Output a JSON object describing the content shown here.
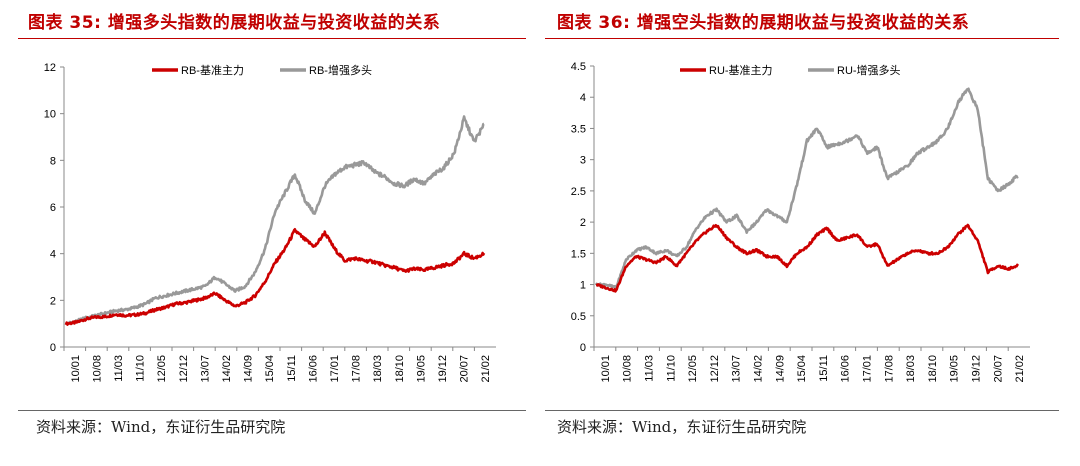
{
  "charts": [
    {
      "title": "图表 35: 增强多头指数的展期收益与投资收益的关系",
      "source": "资料来源：Wind，东证衍生品研究院"
    },
    {
      "title": "图表 36: 增强空头指数的展期收益与投资收益的关系",
      "source": "资料来源：Wind，东证衍生品研究院"
    }
  ],
  "chart_data": [
    {
      "type": "line",
      "x_ticks": [
        "10/01",
        "10/08",
        "11/03",
        "11/10",
        "12/05",
        "12/12",
        "13/07",
        "14/02",
        "14/09",
        "15/04",
        "15/11",
        "16/06",
        "17/01",
        "17/08",
        "18/03",
        "18/10",
        "19/05",
        "19/12",
        "20/07",
        "21/02"
      ],
      "ylim": [
        0,
        12
      ],
      "y_ticks": [
        0,
        2,
        4,
        6,
        8,
        10,
        12
      ],
      "legend_position": "top-center",
      "grid": false,
      "series": [
        {
          "name": "RB-基准主力",
          "color": "#cc0000",
          "values": [
            1.0,
            1.05,
            1.2,
            1.28,
            1.3,
            1.4,
            1.35,
            1.38,
            1.45,
            1.6,
            1.7,
            1.85,
            1.9,
            2.0,
            2.1,
            2.3,
            2.0,
            1.75,
            1.9,
            2.2,
            2.8,
            3.6,
            4.2,
            5.0,
            4.6,
            4.3,
            4.9,
            4.2,
            3.7,
            3.8,
            3.7,
            3.65,
            3.5,
            3.4,
            3.25,
            3.35,
            3.3,
            3.4,
            3.5,
            3.6,
            4.0,
            3.8,
            4.0
          ]
        },
        {
          "name": "RB-增强多头",
          "color": "#999999",
          "values": [
            1.0,
            1.1,
            1.25,
            1.35,
            1.45,
            1.55,
            1.6,
            1.7,
            1.85,
            2.1,
            2.2,
            2.3,
            2.4,
            2.5,
            2.6,
            3.0,
            2.7,
            2.4,
            2.6,
            3.2,
            4.2,
            5.8,
            6.6,
            7.4,
            6.3,
            5.7,
            6.9,
            7.4,
            7.7,
            7.8,
            7.9,
            7.5,
            7.3,
            7.0,
            6.9,
            7.2,
            7.0,
            7.4,
            7.7,
            8.3,
            9.8,
            8.8,
            9.5
          ]
        }
      ]
    },
    {
      "type": "line",
      "x_ticks": [
        "10/01",
        "10/08",
        "11/03",
        "11/10",
        "12/05",
        "12/12",
        "13/07",
        "14/02",
        "14/09",
        "15/04",
        "15/11",
        "16/06",
        "17/01",
        "17/08",
        "18/03",
        "18/10",
        "19/05",
        "19/12",
        "20/07",
        "21/02"
      ],
      "ylim": [
        0,
        4.5
      ],
      "y_ticks": [
        0,
        0.5,
        1,
        1.5,
        2,
        2.5,
        3,
        3.5,
        4,
        4.5
      ],
      "legend_position": "top-center",
      "grid": false,
      "series": [
        {
          "name": "RU-基准主力",
          "color": "#cc0000",
          "values": [
            1.0,
            0.95,
            0.9,
            1.3,
            1.45,
            1.4,
            1.35,
            1.45,
            1.3,
            1.5,
            1.7,
            1.85,
            1.95,
            1.75,
            1.6,
            1.5,
            1.55,
            1.45,
            1.45,
            1.3,
            1.5,
            1.6,
            1.8,
            1.9,
            1.7,
            1.75,
            1.8,
            1.6,
            1.65,
            1.3,
            1.4,
            1.5,
            1.55,
            1.5,
            1.5,
            1.6,
            1.8,
            1.95,
            1.7,
            1.2,
            1.3,
            1.25,
            1.3
          ]
        },
        {
          "name": "RU-增强多头",
          "color": "#999999",
          "values": [
            1.0,
            1.0,
            0.95,
            1.4,
            1.55,
            1.6,
            1.5,
            1.55,
            1.45,
            1.6,
            1.9,
            2.1,
            2.2,
            2.0,
            2.1,
            1.85,
            2.0,
            2.2,
            2.1,
            2.0,
            2.6,
            3.3,
            3.5,
            3.2,
            3.25,
            3.3,
            3.4,
            3.1,
            3.2,
            2.7,
            2.8,
            2.9,
            3.1,
            3.2,
            3.3,
            3.5,
            3.9,
            4.15,
            3.8,
            2.7,
            2.5,
            2.6,
            2.75
          ]
        }
      ]
    }
  ]
}
